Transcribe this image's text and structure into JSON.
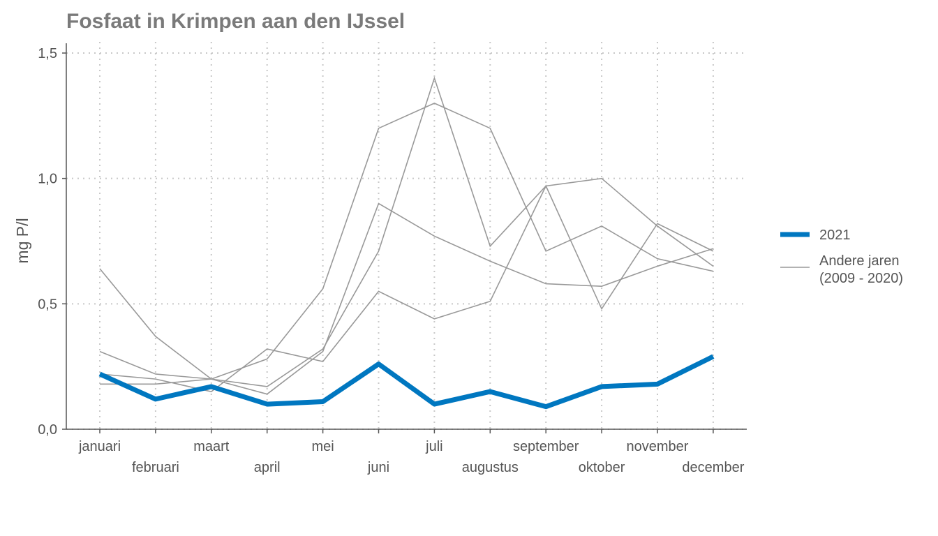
{
  "chart_data": {
    "type": "line",
    "title": "Fosfaat in Krimpen aan den IJssel",
    "xlabel": "",
    "ylabel": "mg P/l",
    "ylim": [
      0,
      1.5
    ],
    "yticks": [
      0,
      0.5,
      1.0,
      1.5
    ],
    "ytick_labels": [
      "0,0",
      "0,5",
      "1,0",
      "1,5"
    ],
    "grid": "dotted",
    "legend_position": "right",
    "categories": [
      "januari",
      "februari",
      "maart",
      "april",
      "mei",
      "juni",
      "juli",
      "augustus",
      "september",
      "oktober",
      "november",
      "december"
    ],
    "highlight": {
      "name": "2021",
      "color": "#0077c0",
      "values": [
        0.22,
        0.12,
        0.17,
        0.1,
        0.11,
        0.26,
        0.1,
        0.15,
        0.09,
        0.17,
        0.18,
        0.29
      ]
    },
    "other_years": {
      "name_line1": "Andere jaren",
      "name_line2": "(2009 - 2020)",
      "color": "#999999",
      "series": [
        [
          0.64,
          0.37,
          0.2,
          0.28,
          0.56,
          1.2,
          1.3,
          1.2,
          0.71,
          0.81,
          0.68,
          0.63
        ],
        [
          0.31,
          0.22,
          0.2,
          0.17,
          0.32,
          0.71,
          1.4,
          0.73,
          0.97,
          1.0,
          0.81,
          0.65
        ],
        [
          0.18,
          0.18,
          0.2,
          0.14,
          0.31,
          0.9,
          0.77,
          0.67,
          0.58,
          0.57,
          0.65,
          0.72
        ],
        [
          0.22,
          0.2,
          0.15,
          0.32,
          0.27,
          0.55,
          0.44,
          0.51,
          0.97,
          0.48,
          0.82,
          0.71
        ]
      ]
    }
  }
}
